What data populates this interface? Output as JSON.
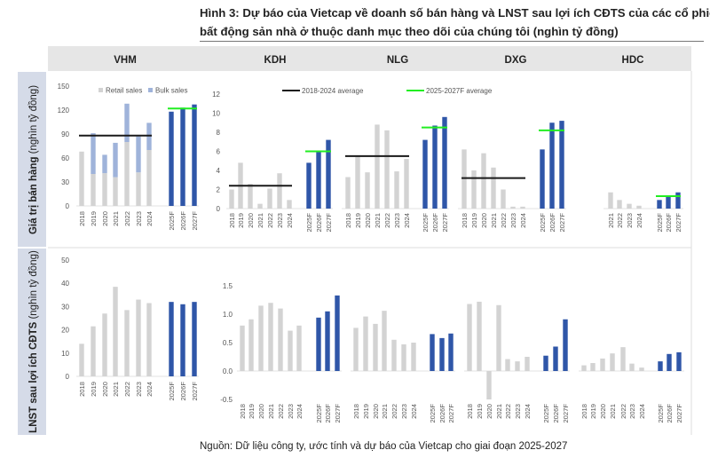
{
  "title": {
    "line1": "Hình 3: Dự báo của Vietcap về doanh số bán hàng và LNST sau lợi ích CĐTS của các cổ phiếu",
    "line2": "bất động sản nhà ở thuộc danh mục theo dõi của chúng tôi (nghìn tỷ đồng)"
  },
  "source": "Nguồn: Dữ liệu công ty, ước tính và dự báo của Vietcap cho giai đoạn 2025-2027",
  "panels": [
    "VHM",
    "KDH",
    "NLG",
    "DXG",
    "HDC"
  ],
  "row_labels": [
    {
      "bold": "Giá trị bán hàng",
      "rest": " (nghìn tỷ đồng)"
    },
    {
      "bold": "LNST sau lợi ích CĐTS",
      "rest": "  (nghìn tỷ đồng)"
    }
  ],
  "legend": {
    "retail": "Retail sales",
    "bulk": "Bulk sales",
    "avg_hist": "2018-2024 average",
    "avg_fcst": "2025-2027F average"
  },
  "colors": {
    "historical": "#d3d3d3",
    "bulk": "#9fb3da",
    "forecast": "#2f56a8",
    "avg_hist": "#1a1a1a",
    "avg_fcst": "#22ee22",
    "header_bg": "#e6e6e6",
    "row_label_bg": "#d5dbe8"
  },
  "chart_data": [
    {
      "id": "VHM-0",
      "panel": "VHM",
      "row": 0,
      "type": "bar",
      "stacked": true,
      "categories": [
        "2018",
        "2019",
        "2020",
        "2021",
        "2022",
        "2023",
        "2024",
        "2025F",
        "2026F",
        "2027F"
      ],
      "values": [
        68,
        40,
        41,
        36,
        80,
        42,
        70,
        118,
        123,
        127
      ],
      "bulk": [
        0,
        51,
        23,
        43,
        48,
        45,
        34,
        null,
        null,
        null
      ],
      "avg_hist": 88,
      "avg_fcst": 122,
      "ylim": [
        0,
        150
      ],
      "yticks": [
        "0",
        "30",
        "60",
        "90",
        "120",
        "150"
      ]
    },
    {
      "id": "KDH-0",
      "panel": "KDH",
      "row": 0,
      "type": "bar",
      "categories": [
        "2018",
        "2019",
        "2020",
        "2021",
        "2022",
        "2023",
        "2024",
        "2025F",
        "2026F",
        "2027F"
      ],
      "values": [
        2.0,
        4.8,
        2.6,
        0.5,
        2.1,
        3.7,
        0.9,
        4.8,
        6.0,
        7.2
      ],
      "avg_hist": 2.4,
      "avg_fcst": 6.0,
      "ylim": [
        0,
        12
      ],
      "yticks": [
        "0",
        "2",
        "4",
        "6",
        "8",
        "10",
        "12"
      ]
    },
    {
      "id": "NLG-0",
      "panel": "NLG",
      "row": 0,
      "type": "bar",
      "categories": [
        "2018",
        "2019",
        "2020",
        "2021",
        "2022",
        "2023",
        "2024",
        "2025F",
        "2026F",
        "2027F"
      ],
      "values": [
        3.3,
        5.5,
        3.8,
        8.8,
        8.2,
        3.9,
        5.2,
        7.2,
        8.7,
        9.6
      ],
      "avg_hist": 5.5,
      "avg_fcst": 8.5,
      "ylim": [
        0,
        12
      ]
    },
    {
      "id": "DXG-0",
      "panel": "DXG",
      "row": 0,
      "type": "bar",
      "categories": [
        "2018",
        "2019",
        "2020",
        "2021",
        "2022",
        "2023",
        "2024",
        "2025F",
        "2026F",
        "2027F"
      ],
      "values": [
        6.2,
        4.0,
        5.8,
        4.3,
        2.0,
        0.2,
        0.2,
        6.2,
        9.0,
        9.2
      ],
      "avg_hist": 3.2,
      "avg_fcst": 8.2,
      "ylim": [
        0,
        12
      ]
    },
    {
      "id": "HDC-0",
      "panel": "HDC",
      "row": 0,
      "type": "bar",
      "categories": [
        "2021",
        "2022",
        "2023",
        "2024",
        "2025F",
        "2026F",
        "2027F"
      ],
      "values": [
        1.7,
        0.9,
        0.5,
        0.3,
        0.9,
        1.3,
        1.7
      ],
      "avg_fcst": 1.3,
      "ylim": [
        0,
        12
      ]
    },
    {
      "id": "VHM-1",
      "panel": "VHM",
      "row": 1,
      "type": "bar",
      "categories": [
        "2018",
        "2019",
        "2020",
        "2021",
        "2022",
        "2023",
        "2024",
        "2025F",
        "2026F",
        "2027F"
      ],
      "values": [
        14,
        21.5,
        27,
        38.5,
        28.5,
        33,
        31.5,
        32,
        31,
        32
      ],
      "ylim": [
        0,
        50
      ],
      "yticks": [
        "0",
        "10",
        "20",
        "30",
        "40",
        "50"
      ]
    },
    {
      "id": "KDH-1",
      "panel": "KDH",
      "row": 1,
      "type": "bar",
      "categories": [
        "2018",
        "2019",
        "2020",
        "2021",
        "2022",
        "2023",
        "2024",
        "2025F",
        "2026F",
        "2027F"
      ],
      "values": [
        0.8,
        0.91,
        1.15,
        1.2,
        1.1,
        0.71,
        0.8,
        0.94,
        1.05,
        1.33
      ],
      "ylim": [
        -0.5,
        1.5
      ],
      "yticks": [
        "-0.5",
        "0.0",
        "0.5",
        "1.0",
        "1.5"
      ]
    },
    {
      "id": "NLG-1",
      "panel": "NLG",
      "row": 1,
      "type": "bar",
      "categories": [
        "2018",
        "2019",
        "2020",
        "2021",
        "2022",
        "2023",
        "2024",
        "2025F",
        "2026F",
        "2027F"
      ],
      "values": [
        0.76,
        0.96,
        0.83,
        1.06,
        0.55,
        0.47,
        0.5,
        0.65,
        0.58,
        0.66
      ],
      "ylim": [
        -0.5,
        1.5
      ]
    },
    {
      "id": "DXG-1",
      "panel": "DXG",
      "row": 1,
      "type": "bar",
      "categories": [
        "2018",
        "2019",
        "2020",
        "2021",
        "2022",
        "2023",
        "2024",
        "2025F",
        "2026F",
        "2027F"
      ],
      "values": [
        1.18,
        1.22,
        -0.5,
        1.16,
        0.21,
        0.17,
        0.25,
        0.27,
        0.43,
        0.91
      ],
      "ylim": [
        -0.5,
        1.5
      ]
    },
    {
      "id": "HDC-1",
      "panel": "HDC",
      "row": 1,
      "type": "bar",
      "categories": [
        "2018",
        "2019",
        "2020",
        "2021",
        "2022",
        "2023",
        "2024",
        "2025F",
        "2026F",
        "2027F"
      ],
      "values": [
        0.1,
        0.14,
        0.22,
        0.31,
        0.42,
        0.13,
        0.06,
        0.17,
        0.3,
        0.33
      ],
      "ylim": [
        -0.5,
        1.5
      ]
    }
  ]
}
